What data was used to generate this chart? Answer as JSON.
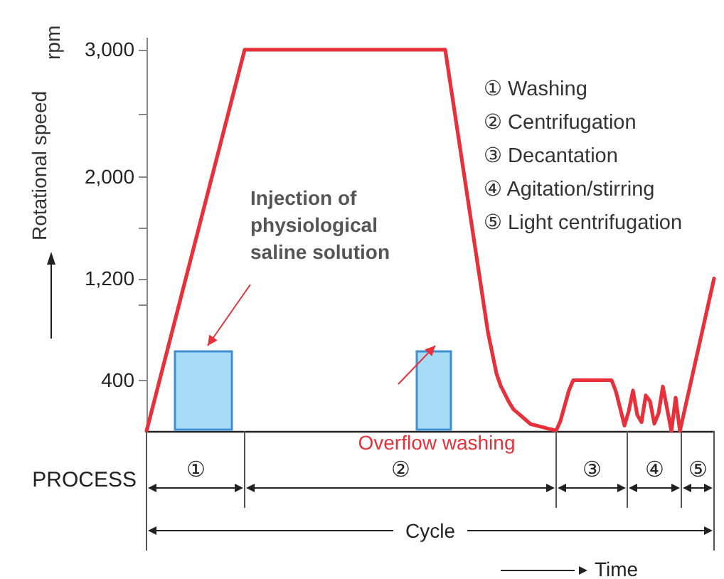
{
  "chart_data": {
    "type": "line",
    "ylabel": "Rotational speed",
    "categories": [
      null,
      null,
      null,
      null,
      null,
      null,
      null,
      null,
      null,
      null,
      null,
      null,
      null,
      null,
      null,
      null,
      null,
      null,
      null,
      null,
      null,
      null,
      null,
      null,
      null,
      null,
      null,
      null,
      null,
      null,
      null,
      null,
      null,
      null,
      null,
      null,
      null,
      null,
      null,
      null,
      null,
      null,
      null,
      null,
      null,
      null,
      null,
      null,
      null,
      null,
      null,
      null,
      null,
      null,
      null,
      null,
      null,
      null,
      null,
      null,
      null,
      null,
      null,
      null,
      null,
      null,
      null,
      null,
      null,
      null,
      null,
      null,
      null,
      null,
      null,
      null,
      null,
      null,
      null,
      null,
      null,
      null,
      null,
      null,
      null,
      null,
      null,
      null,
      null,
      null,
      null,
      null,
      null,
      null,
      null,
      null,
      null,
      null,
      null,
      null,
      null,
      null,
      null,
      null,
      null,
      null,
      null,
      null,
      null,
      null,
      null,
      null,
      null,
      null,
      null,
      null,
      null,
      null,
      null,
      null,
      null,
      null,
      null,
      null,
      null,
      null,
      null,
      null,
      null,
      null,
      null,
      null,
      null,
      null
    ],
    "ylim": [
      0,
      3100
    ],
    "yticks": [
      {
        "value": 400,
        "label": "400"
      },
      {
        "value": 1000,
        "label": null
      },
      {
        "value": 1200,
        "label": "1,200"
      },
      {
        "value": 1600,
        "label": null
      },
      {
        "value": 2000,
        "label": "2,000"
      },
      {
        "value": 2500,
        "label": null
      },
      {
        "value": 3000,
        "label": "3,000"
      }
    ],
    "tick_labels": "y",
    "line_style": "solid",
    "marker": "none",
    "series": [
      {
        "color": "#e8303a",
        "values": [
          0,
          130,
          261,
          391,
          522,
          652,
          783,
          913,
          1043,
          1174,
          1304,
          1435,
          1565,
          1696,
          1826,
          1957,
          2087,
          2217,
          2348,
          2478,
          2609,
          2739,
          2870,
          3000,
          3000,
          3000,
          3000,
          3000,
          3000,
          3000,
          3000,
          3000,
          3000,
          3000,
          3000,
          3000,
          3000,
          3000,
          3000,
          3000,
          3000,
          3000,
          3000,
          3000,
          3000,
          3000,
          3000,
          3000,
          3000,
          3000,
          3000,
          3000,
          3000,
          3000,
          3000,
          3000,
          3000,
          3000,
          3000,
          3000,
          3000,
          3000,
          3000,
          3000,
          3000,
          3000,
          3000,
          3000,
          3000,
          3000,
          3000,
          2778,
          2556,
          2334,
          2112,
          1890,
          1668,
          1446,
          1224,
          1002,
          780,
          617,
          454,
          356,
          290,
          224,
          170,
          142,
          113,
          84,
          55,
          46,
          38,
          29,
          20,
          12,
          3,
          80,
          200,
          320,
          400,
          400,
          400,
          400,
          400,
          400,
          400,
          400,
          400,
          400,
          311,
          178,
          44,
          156,
          318,
          127,
          70,
          280,
          233,
          58,
          140,
          350,
          175,
          0,
          262,
          0,
          150,
          300,
          450,
          600,
          750,
          900,
          1050,
          1200
        ]
      }
    ],
    "annotations": [
      "rpm",
      "Injection of physiological saline solution",
      "Overflow washing",
      "PROCESS",
      "① Washing",
      "② Centrifugation",
      "③ Decantation",
      "④ Agitation/stirring",
      "⑤ Light centrifugation",
      "①",
      "②",
      "③",
      "④",
      "⑤",
      "Cycle",
      "Time"
    ]
  }
}
